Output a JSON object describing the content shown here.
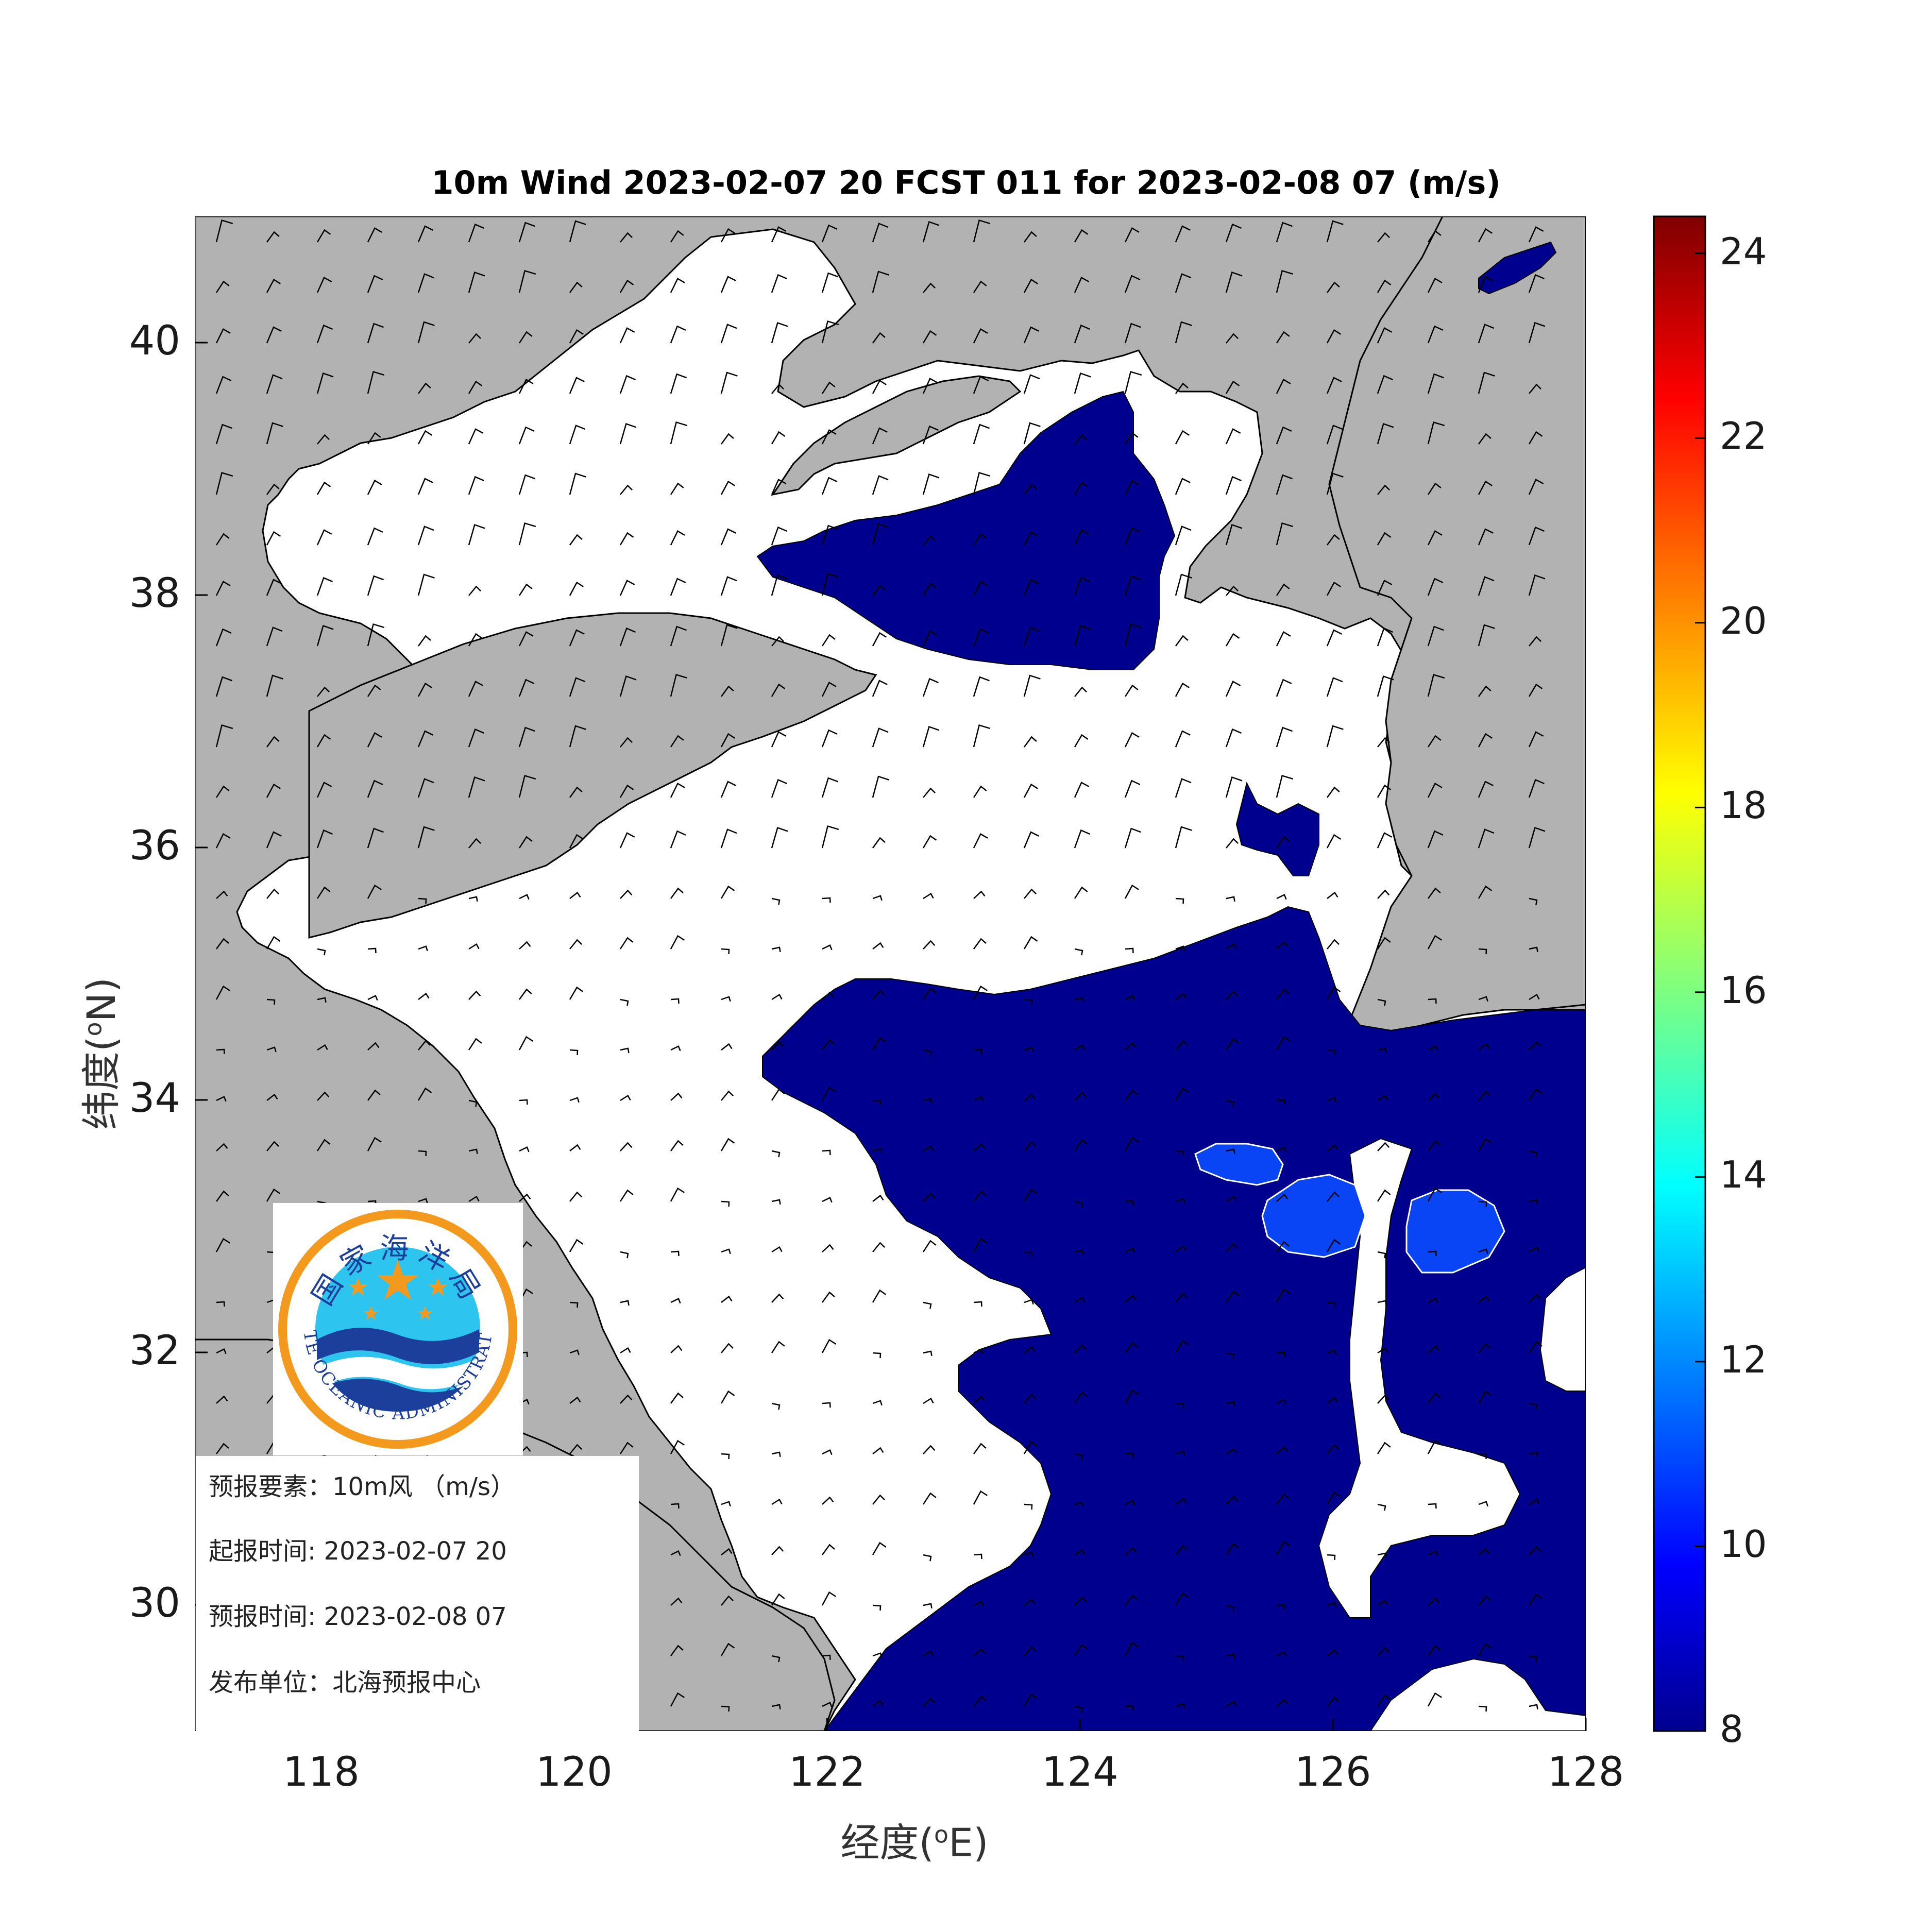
{
  "title": "10m Wind 2023-02-07 20 FCST 011 for 2023-02-08 07 (m/s)",
  "x_axis": {
    "label": "经度",
    "unit_sup": "o",
    "unit": "E",
    "range": [
      117,
      128
    ],
    "ticks": [
      "118",
      "120",
      "122",
      "124",
      "126",
      "128"
    ]
  },
  "y_axis": {
    "label": "纬度",
    "unit_sup": "o",
    "unit": "N",
    "range": [
      29,
      41
    ],
    "ticks": [
      "30",
      "32",
      "34",
      "36",
      "38",
      "40"
    ]
  },
  "colorbar": {
    "range": [
      8,
      24.4
    ],
    "ticks": [
      "8",
      "10",
      "12",
      "14",
      "16",
      "18",
      "20",
      "22",
      "24"
    ]
  },
  "colors": {
    "land": "#b2b2b2",
    "sea": "#ffffff",
    "wind_8_10": "#00008f",
    "wind_10_12": "#0a45f5",
    "barb": "#000000"
  },
  "logo": {
    "name_cn": "国家海洋局",
    "name_en": "STATE OCEANIC ADMINISTRATION",
    "colors": {
      "ring": "#f39a1e",
      "sky": "#2ec4f0",
      "wave": "#1b3f9a",
      "star": "#f39a1e"
    }
  },
  "info": {
    "element_label": "预报要素：",
    "element_value": "10m风 （m/s）",
    "issue_label": "起报时间: ",
    "issue_value": "2023-02-07 20",
    "valid_label": "预报时间: ",
    "valid_value": "2023-02-08 07",
    "publisher_label": "发布单位：",
    "publisher_value": "北海预报中心"
  },
  "chart_data": {
    "type": "heatmap",
    "variable": "10m wind speed (m/s)",
    "contour_levels": [
      8,
      10,
      12
    ],
    "regions": [
      {
        "level": "8-10",
        "area": "central Bohai Strait / N Yellow Sea, lon 121.4-124.7, lat 37.3-39.6"
      },
      {
        "level": "8-10",
        "area": "small patch near lon 125.5-126.0, lat 35.7-36.5"
      },
      {
        "level": "8-10",
        "area": "southern Yellow Sea / East China Sea, lon 121.4-128, lat 29-35.4"
      },
      {
        "level": "8-10",
        "area": "NE corner near lon 127.2-127.8, lat 40.2-40.7"
      },
      {
        "level": "10-12",
        "area": "lon 125.0-125.6, lat 33.4-33.6"
      },
      {
        "level": "10-12",
        "area": "lon 125.5-126.3, lat 32.8-33.4"
      },
      {
        "level": "10-12",
        "area": "lon 126.6-127.4, lat 32.6-33.3"
      }
    ],
    "wind_field": "predominantly southwesterly over sea, westerly/northwesterly over land"
  }
}
